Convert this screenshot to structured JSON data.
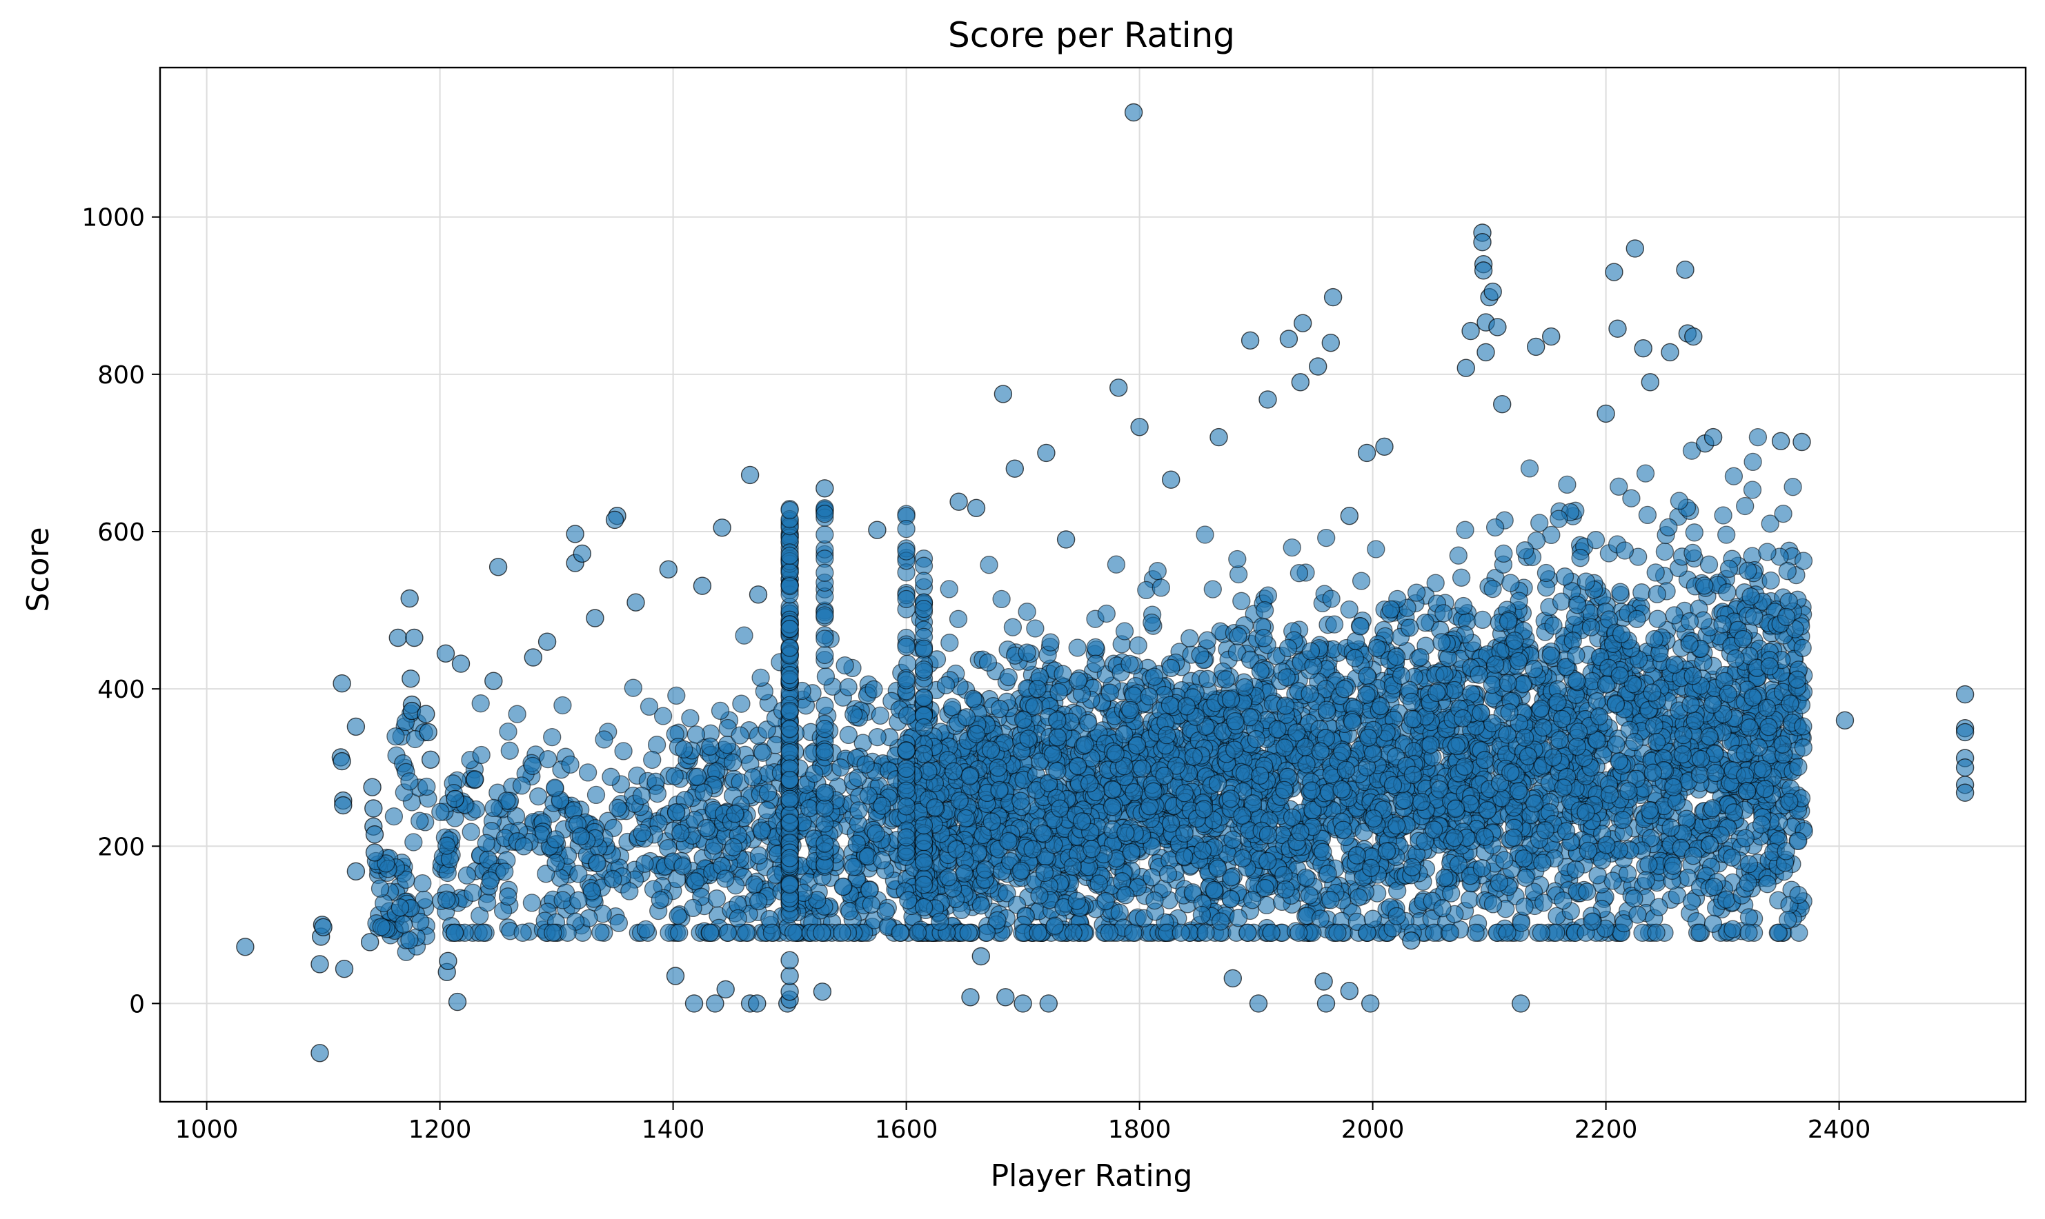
{
  "chart_data": {
    "type": "scatter",
    "title": "Score per Rating",
    "xlabel": "Player Rating",
    "ylabel": "Score",
    "xlim": [
      960,
      2560
    ],
    "ylim": [
      -125,
      1190
    ],
    "xticks": [
      1000,
      1200,
      1400,
      1600,
      1800,
      2000,
      2200,
      2400
    ],
    "yticks": [
      0,
      200,
      400,
      600,
      800,
      1000
    ],
    "grid": true,
    "legend": "none",
    "point_color": "#1f77b4",
    "edge_color": "#000000",
    "point_alpha": 0.6,
    "series": [
      {
        "points": [
          [
            1033,
            72
          ],
          [
            1097,
            -63
          ],
          [
            1097,
            50
          ],
          [
            1098,
            85
          ],
          [
            1099,
            100
          ],
          [
            1100,
            97
          ],
          [
            1116,
            407
          ],
          [
            1115,
            313
          ],
          [
            1116,
            308
          ],
          [
            1117,
            258
          ],
          [
            1117,
            252
          ],
          [
            1118,
            44
          ],
          [
            1128,
            352
          ],
          [
            1128,
            168
          ],
          [
            1142,
            275
          ],
          [
            1143,
            248
          ],
          [
            1143,
            225
          ],
          [
            1144,
            215
          ],
          [
            1144,
            192
          ],
          [
            1140,
            78
          ],
          [
            1164,
            465
          ],
          [
            1174,
            515
          ],
          [
            1175,
            413
          ],
          [
            1176,
            380
          ],
          [
            1176,
            372
          ],
          [
            1178,
            465
          ],
          [
            1188,
            368
          ],
          [
            1190,
            345
          ],
          [
            1192,
            310
          ],
          [
            1205,
            445
          ],
          [
            1218,
            432
          ],
          [
            1206,
            40
          ],
          [
            1207,
            54
          ],
          [
            1213,
            260
          ],
          [
            1230,
            285
          ],
          [
            1250,
            555
          ],
          [
            1246,
            410
          ],
          [
            1280,
            440
          ],
          [
            1292,
            460
          ],
          [
            1316,
            597
          ],
          [
            1316,
            560
          ],
          [
            1322,
            572
          ],
          [
            1333,
            490
          ],
          [
            1352,
            620
          ],
          [
            1350,
            615
          ],
          [
            1368,
            510
          ],
          [
            1396,
            552
          ],
          [
            1425,
            531
          ],
          [
            1442,
            605
          ],
          [
            1466,
            672
          ],
          [
            1473,
            520
          ],
          [
            1530,
            655
          ],
          [
            1575,
            602
          ],
          [
            1645,
            638
          ],
          [
            1660,
            630
          ],
          [
            1683,
            775
          ],
          [
            1693,
            680
          ],
          [
            1720,
            700
          ],
          [
            1737,
            590
          ],
          [
            1782,
            783
          ],
          [
            1795,
            1133
          ],
          [
            1800,
            733
          ],
          [
            1827,
            666
          ],
          [
            1868,
            720
          ],
          [
            1895,
            843
          ],
          [
            1910,
            768
          ],
          [
            1928,
            845
          ],
          [
            1938,
            790
          ],
          [
            1940,
            865
          ],
          [
            1953,
            810
          ],
          [
            1966,
            898
          ],
          [
            1964,
            840
          ],
          [
            1980,
            620
          ],
          [
            1995,
            700
          ],
          [
            2010,
            708
          ],
          [
            2080,
            808
          ],
          [
            2084,
            855
          ],
          [
            2094,
            980
          ],
          [
            2094,
            968
          ],
          [
            2095,
            940
          ],
          [
            2095,
            932
          ],
          [
            2097,
            866
          ],
          [
            2097,
            828
          ],
          [
            2100,
            898
          ],
          [
            2103,
            905
          ],
          [
            2107,
            860
          ],
          [
            2111,
            762
          ],
          [
            2140,
            835
          ],
          [
            2153,
            848
          ],
          [
            2200,
            750
          ],
          [
            2207,
            930
          ],
          [
            2210,
            858
          ],
          [
            2225,
            960
          ],
          [
            2232,
            833
          ],
          [
            2238,
            790
          ],
          [
            2255,
            828
          ],
          [
            2268,
            933
          ],
          [
            2270,
            852
          ],
          [
            2275,
            848
          ],
          [
            2285,
            712
          ],
          [
            2292,
            720
          ],
          [
            2350,
            715
          ],
          [
            2368,
            714
          ],
          [
            1215,
            2
          ],
          [
            1402,
            35
          ],
          [
            1418,
            0
          ],
          [
            1436,
            0
          ],
          [
            1445,
            18
          ],
          [
            1466,
            0
          ],
          [
            1472,
            0
          ],
          [
            1498,
            0
          ],
          [
            1500,
            5
          ],
          [
            1500,
            15
          ],
          [
            1500,
            35
          ],
          [
            1500,
            55
          ],
          [
            1528,
            15
          ],
          [
            1655,
            8
          ],
          [
            1664,
            60
          ],
          [
            1685,
            8
          ],
          [
            1700,
            0
          ],
          [
            1722,
            0
          ],
          [
            1880,
            32
          ],
          [
            1902,
            0
          ],
          [
            1958,
            28
          ],
          [
            1960,
            0
          ],
          [
            1980,
            16
          ],
          [
            1998,
            0
          ],
          [
            2033,
            80
          ],
          [
            2127,
            0
          ],
          [
            2289,
            202
          ],
          [
            2321,
            270
          ],
          [
            2405,
            360
          ],
          [
            2508,
            393
          ],
          [
            2508,
            350
          ],
          [
            2508,
            345
          ],
          [
            2508,
            312
          ],
          [
            2508,
            300
          ],
          [
            2508,
            278
          ],
          [
            2508,
            268
          ]
        ]
      }
    ]
  }
}
